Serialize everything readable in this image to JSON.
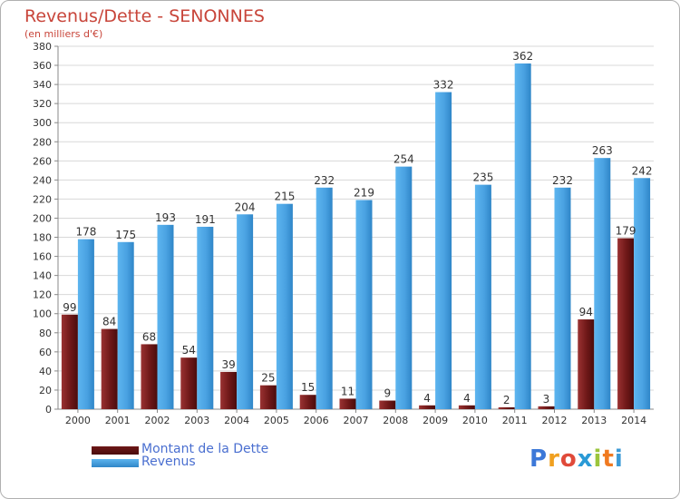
{
  "chart_data": {
    "type": "bar",
    "title": "Revenus/Dette - SENONNES",
    "subtitle": "(en milliers d'€)",
    "categories": [
      "2000",
      "2001",
      "2002",
      "2003",
      "2004",
      "2005",
      "2006",
      "2007",
      "2008",
      "2009",
      "2010",
      "2011",
      "2012",
      "2013",
      "2014"
    ],
    "series": [
      {
        "name": "Montant de la Dette",
        "values": [
          99,
          84,
          68,
          54,
          39,
          25,
          15,
          11,
          9,
          4,
          4,
          2,
          3,
          94,
          179
        ],
        "color": "#7a1f1f"
      },
      {
        "name": "Revenus",
        "values": [
          178,
          175,
          193,
          191,
          204,
          215,
          232,
          219,
          254,
          332,
          235,
          362,
          232,
          263,
          242
        ],
        "color": "#4ba3e3"
      }
    ],
    "ylim": [
      0,
      380
    ],
    "yticks": [
      0,
      20,
      40,
      60,
      80,
      100,
      120,
      140,
      160,
      180,
      200,
      220,
      240,
      260,
      280,
      300,
      320,
      340,
      360,
      380
    ],
    "grid": true,
    "legend_position": "bottom-left"
  },
  "logo": {
    "text": "Proxiti"
  }
}
